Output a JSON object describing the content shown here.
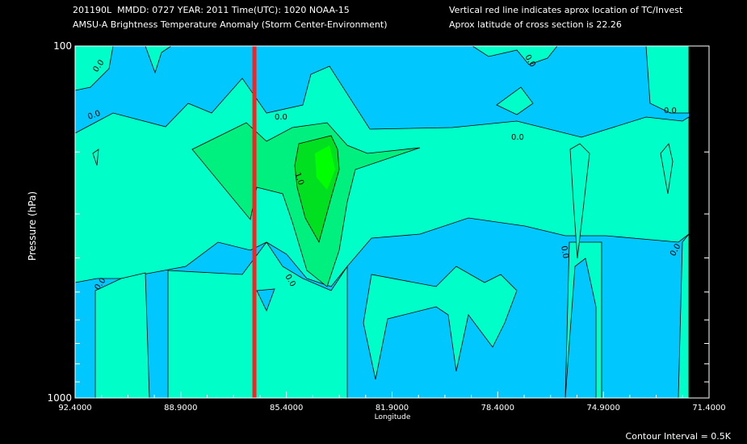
{
  "header": {
    "line1_left": "201190L  MMDD: 0727 YEAR: 2011 Time(UTC): 1020 NOAA-15",
    "line2_left": "AMSU-A Brightness Temperature Anomaly (Storm Center-Environment)",
    "line1_right": "Vertical red line indicates aprox location of TC/Invest",
    "line2_right": "Aprox latitude of cross section is 22.26"
  },
  "footer": {
    "contour_interval": "Contour Interval = 0.5K"
  },
  "chart_data": {
    "type": "contour",
    "ylabel": "Pressure (hPa)",
    "xlabel": "Longitude",
    "x_ticks": [
      "92.4000",
      "88.9000",
      "85.4000",
      "81.9000",
      "78.4000",
      "74.9000",
      "71.4000"
    ],
    "y_ticks": [
      "100",
      "1000"
    ],
    "xlim": [
      92.4,
      71.4
    ],
    "ylim": [
      1000,
      100
    ],
    "y_scale": "log",
    "tc_longitude": 86.46,
    "contour_labels": [
      "0.0",
      "0.0",
      "0.0",
      "0.0",
      "0.0",
      "0.0",
      "0.0",
      "0.0",
      "0.0",
      "0.0",
      "1.0"
    ],
    "colors": {
      "background": "#000000",
      "below_0": "#00c8ff",
      "0_to_0.5": "#00ffc8",
      "0.5_to_1.0": "#00f080",
      "above_1.0": "#00e020",
      "tc_line": "#ff1f1f"
    }
  }
}
